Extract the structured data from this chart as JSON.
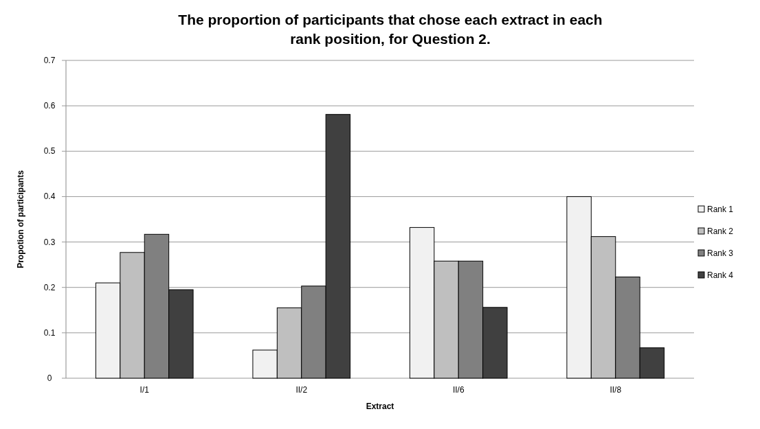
{
  "chart_data": {
    "type": "bar",
    "title": "The proportion of participants that chose each extract in each rank position, for Question 2.",
    "xlabel": "Extract",
    "ylabel": "Propotion of participants",
    "categories": [
      "I/1",
      "II/2",
      "II/6",
      "II/8"
    ],
    "series": [
      {
        "name": "Rank 1",
        "color": "#f1f1f1",
        "values": [
          0.21,
          0.062,
          0.332,
          0.4
        ]
      },
      {
        "name": "Rank 2",
        "color": "#bfbfbf",
        "values": [
          0.277,
          0.155,
          0.258,
          0.312
        ]
      },
      {
        "name": "Rank 3",
        "color": "#808080",
        "values": [
          0.317,
          0.203,
          0.258,
          0.223
        ]
      },
      {
        "name": "Rank 4",
        "color": "#404040",
        "values": [
          0.195,
          0.581,
          0.156,
          0.067
        ]
      }
    ],
    "ylim": [
      0,
      0.7
    ],
    "yticks": [
      0,
      0.1,
      0.2,
      0.3,
      0.4,
      0.5,
      0.6,
      0.7
    ],
    "grid": "y",
    "legend": "right"
  }
}
